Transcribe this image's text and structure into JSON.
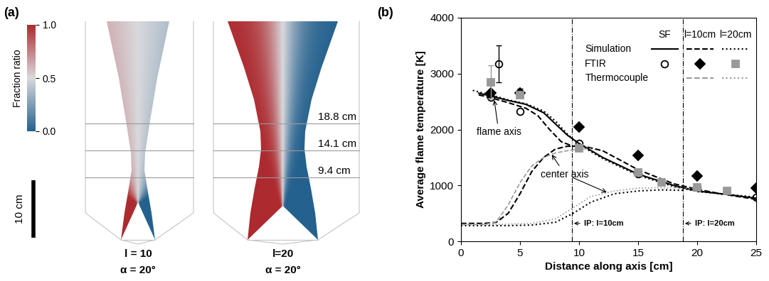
{
  "panel_a": {
    "label": "(a)",
    "colorbar": {
      "label": "Fraction ratio",
      "range": [
        0,
        1
      ],
      "ticks": [
        {
          "value": 0,
          "label": "0.0"
        },
        {
          "value": 0.5,
          "label": "0.5"
        },
        {
          "value": 1,
          "label": "1.0"
        }
      ],
      "colors": [
        "#24618e",
        "#d9d9dc",
        "#ad2a2f"
      ]
    },
    "scale_bar": {
      "length": 10,
      "label": "10 cm"
    },
    "levels": [
      {
        "value": 18.8,
        "label": "18.8 cm"
      },
      {
        "value": 14.1,
        "label": "14.1 cm"
      },
      {
        "value": 9.4,
        "label": "9.4 cm"
      }
    ],
    "flames": [
      {
        "label": "l = 10",
        "angle_label": "α = 20°"
      },
      {
        "label": "l=20",
        "angle_label": "α = 20°"
      }
    ]
  },
  "chart_data": {
    "type": "line",
    "label": "(b)",
    "x_label": "Distance along axis [cm]",
    "y_label": "Average flame temperature [K]",
    "xlim": [
      0,
      25
    ],
    "xticks": [
      0,
      5,
      10,
      15,
      20,
      25
    ],
    "ylim": [
      0,
      4000
    ],
    "yticks": [
      0,
      1000,
      2000,
      3000,
      4000
    ],
    "legend": "upper right",
    "legend_columns": [
      "SF",
      "l=10cm",
      "l=20cm"
    ],
    "legend_rows": [
      "Simulation",
      "FTIR",
      "Thermocouple"
    ],
    "series": [
      {
        "method": "Simulation",
        "case": "SF",
        "type": "line",
        "color": "#000000",
        "line_style": "solid",
        "x": [
          1.5,
          2.5,
          4,
          5.5,
          7,
          8,
          9,
          10,
          12,
          15,
          18,
          20,
          22,
          25
        ],
        "values": [
          2650,
          2600,
          2520,
          2450,
          2300,
          2100,
          1900,
          1750,
          1500,
          1200,
          1000,
          900,
          850,
          770
        ]
      },
      {
        "method": "Simulation",
        "case": "l=10cm",
        "type": "line",
        "color": "#000000",
        "line_style": "dashed",
        "x": [
          1.5,
          2.5,
          4,
          5.5,
          6.5,
          7.5,
          8.5,
          9.5,
          10,
          12,
          15,
          18,
          20,
          22,
          25
        ],
        "values": [
          2620,
          2570,
          2480,
          2380,
          2250,
          2000,
          1780,
          1700,
          1720,
          1620,
          1280,
          1030,
          930,
          850,
          750
        ]
      },
      {
        "method": "Simulation",
        "case": "l=20cm",
        "type": "line",
        "color": "#000000",
        "line_style": "dotted",
        "x": [
          1,
          2.5,
          4,
          5.5,
          7,
          8,
          9,
          10,
          12,
          15,
          18,
          20,
          22,
          25
        ],
        "values": [
          2700,
          2620,
          2530,
          2460,
          2330,
          2150,
          1920,
          1730,
          1480,
          1180,
          980,
          890,
          850,
          790
        ]
      },
      {
        "method": "Simulation",
        "case": "l=10cm",
        "type": "line",
        "color": "#000000",
        "line_style": "dashed",
        "x": [
          0,
          2,
          3,
          4,
          5,
          6,
          7,
          8,
          9,
          10
        ],
        "values": [
          320,
          320,
          340,
          500,
          850,
          1250,
          1500,
          1650,
          1700,
          1700
        ]
      },
      {
        "method": "Simulation",
        "case": "l=20cm",
        "type": "line",
        "color": "#000000",
        "line_style": "dotted",
        "x": [
          0,
          4,
          6,
          8,
          9.5,
          11,
          13,
          15,
          17,
          19
        ],
        "values": [
          280,
          280,
          290,
          340,
          500,
          700,
          850,
          900,
          920,
          910
        ]
      },
      {
        "method": "Thermocouple",
        "case": "l=10cm",
        "type": "line",
        "color": "#999999",
        "line_style": "dashed",
        "x": [
          0,
          2,
          3,
          4,
          5,
          6,
          7,
          8,
          9,
          10,
          11
        ],
        "values": [
          300,
          300,
          350,
          650,
          1050,
          1350,
          1500,
          1580,
          1620,
          1650,
          1660
        ]
      },
      {
        "method": "Thermocouple",
        "case": "l=20cm",
        "type": "line",
        "color": "#999999",
        "line_style": "dotted",
        "x": [
          0,
          3,
          6,
          8,
          9.5,
          11,
          13,
          15,
          17,
          19,
          20
        ],
        "values": [
          300,
          300,
          320,
          400,
          600,
          800,
          900,
          950,
          960,
          950,
          940
        ]
      },
      {
        "method": "FTIR",
        "case": "SF",
        "type": "scatter",
        "color": "#000000",
        "marker": "circle",
        "x": [
          2.5,
          3.2,
          5,
          10,
          15,
          20,
          25
        ],
        "values": [
          2580,
          3170,
          2330,
          1750,
          1210,
          970,
          790
        ],
        "error": [
          null,
          330,
          null,
          null,
          null,
          null,
          null
        ]
      },
      {
        "method": "FTIR",
        "case": "l=10cm",
        "type": "scatter",
        "color": "#000000",
        "marker": "diamond",
        "x": [
          2.5,
          5,
          10,
          15,
          20,
          25
        ],
        "values": [
          2650,
          2660,
          2050,
          1540,
          1170,
          950
        ],
        "error": [
          null,
          70,
          null,
          null,
          null,
          null
        ]
      },
      {
        "method": "FTIR",
        "case": "l=20cm",
        "type": "scatter",
        "color": "#999999",
        "marker": "square",
        "x": [
          2.5,
          5,
          10,
          15,
          17,
          20,
          22.5
        ],
        "values": [
          2850,
          2620,
          1660,
          1230,
          1060,
          970,
          900
        ],
        "error": [
          300,
          null,
          null,
          null,
          null,
          null,
          null
        ]
      }
    ],
    "vlines": [
      {
        "x": 9.4,
        "label": "IP: l=10cm",
        "line_style": "dashdot"
      },
      {
        "x": 18.8,
        "label": "IP: l=20cm",
        "line_style": "dashdot"
      }
    ],
    "annotations": [
      {
        "text": "flame axis",
        "x": 3.2,
        "y": 1950,
        "arrows": [
          [
            2.8,
            2560
          ]
        ]
      },
      {
        "text": "center axis",
        "x": 8.8,
        "y": 1200,
        "arrows": [
          [
            7.6,
            1580
          ],
          [
            12.5,
            860
          ]
        ]
      }
    ]
  }
}
